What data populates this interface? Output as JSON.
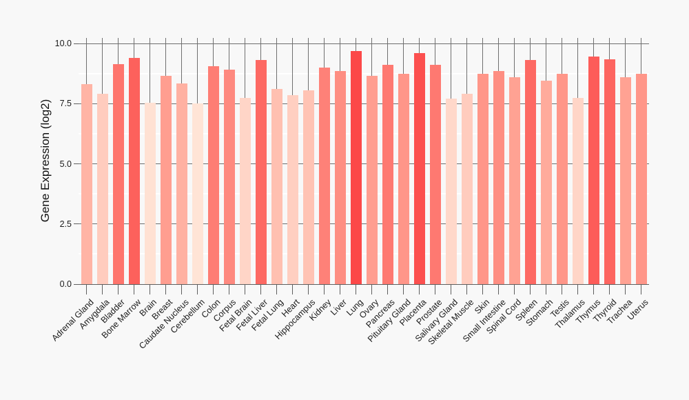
{
  "chart_data": {
    "type": "bar",
    "title": "",
    "ylabel": "Gene Expression (log2)",
    "xlabel": "",
    "categories": [
      "Adrenal Gland",
      "Amygdala",
      "Bladder",
      "Bone Marrow",
      "Brain",
      "Breast",
      "Caudate Nucleus",
      "Cerebellum",
      "Colon",
      "Corpus",
      "Fetal Brain",
      "Fetal Liver",
      "Fetal Lung",
      "Heart",
      "Hippocampus",
      "Kidney",
      "Liver",
      "Lung",
      "Ovary",
      "Pancreas",
      "Pituitary Gland",
      "Placenta",
      "Prostate",
      "Salivary Gland",
      "Skeletal Muscle",
      "Skin",
      "Small Intestine",
      "Spinal Cord",
      "Spleen",
      "Stomach",
      "Testis",
      "Thalamus",
      "Thymus",
      "Thyroid",
      "Trachea",
      "Uterus"
    ],
    "values": [
      8.3,
      7.9,
      9.15,
      9.4,
      7.55,
      8.65,
      8.35,
      7.5,
      9.05,
      8.9,
      7.75,
      9.3,
      8.1,
      7.85,
      8.05,
      9.0,
      8.85,
      9.7,
      8.65,
      9.1,
      8.75,
      9.6,
      9.1,
      7.7,
      7.9,
      8.75,
      8.85,
      8.6,
      9.3,
      8.45,
      8.75,
      7.75,
      9.45,
      9.35,
      8.6,
      8.75
    ],
    "ylim": [
      0,
      10.23
    ],
    "yticks": [
      {
        "value": 0,
        "label": "0.0"
      },
      {
        "value": 2.5,
        "label": "2.5"
      },
      {
        "value": 5,
        "label": "5.0"
      },
      {
        "value": 7.5,
        "label": "7.5"
      },
      {
        "value": 10,
        "label": "10.0"
      }
    ],
    "minor_gridlines": [
      1.25,
      3.75,
      6.25,
      8.75
    ],
    "legend": "none",
    "grid": "major gridlines dark gray drawn behind bars; minor gridlines white; vertical needle line from plot top to each bar top",
    "x_labels_rotation_deg": -45,
    "colors": {
      "background": "#f8f8f8",
      "grid_major": "#6e6e6e",
      "grid_minor": "#ffffff",
      "axis_line": "#5e5e5e",
      "needle": "#6f6f6f",
      "tick_mark": "#5e5e5e",
      "text": "#1a1a1a",
      "bar_scale_stops": [
        {
          "value": 7.5,
          "color": "#ffe4d6"
        },
        {
          "value": 8.6,
          "color": "#ffa293"
        },
        {
          "value": 9.7,
          "color": "#fc4848"
        }
      ]
    }
  }
}
